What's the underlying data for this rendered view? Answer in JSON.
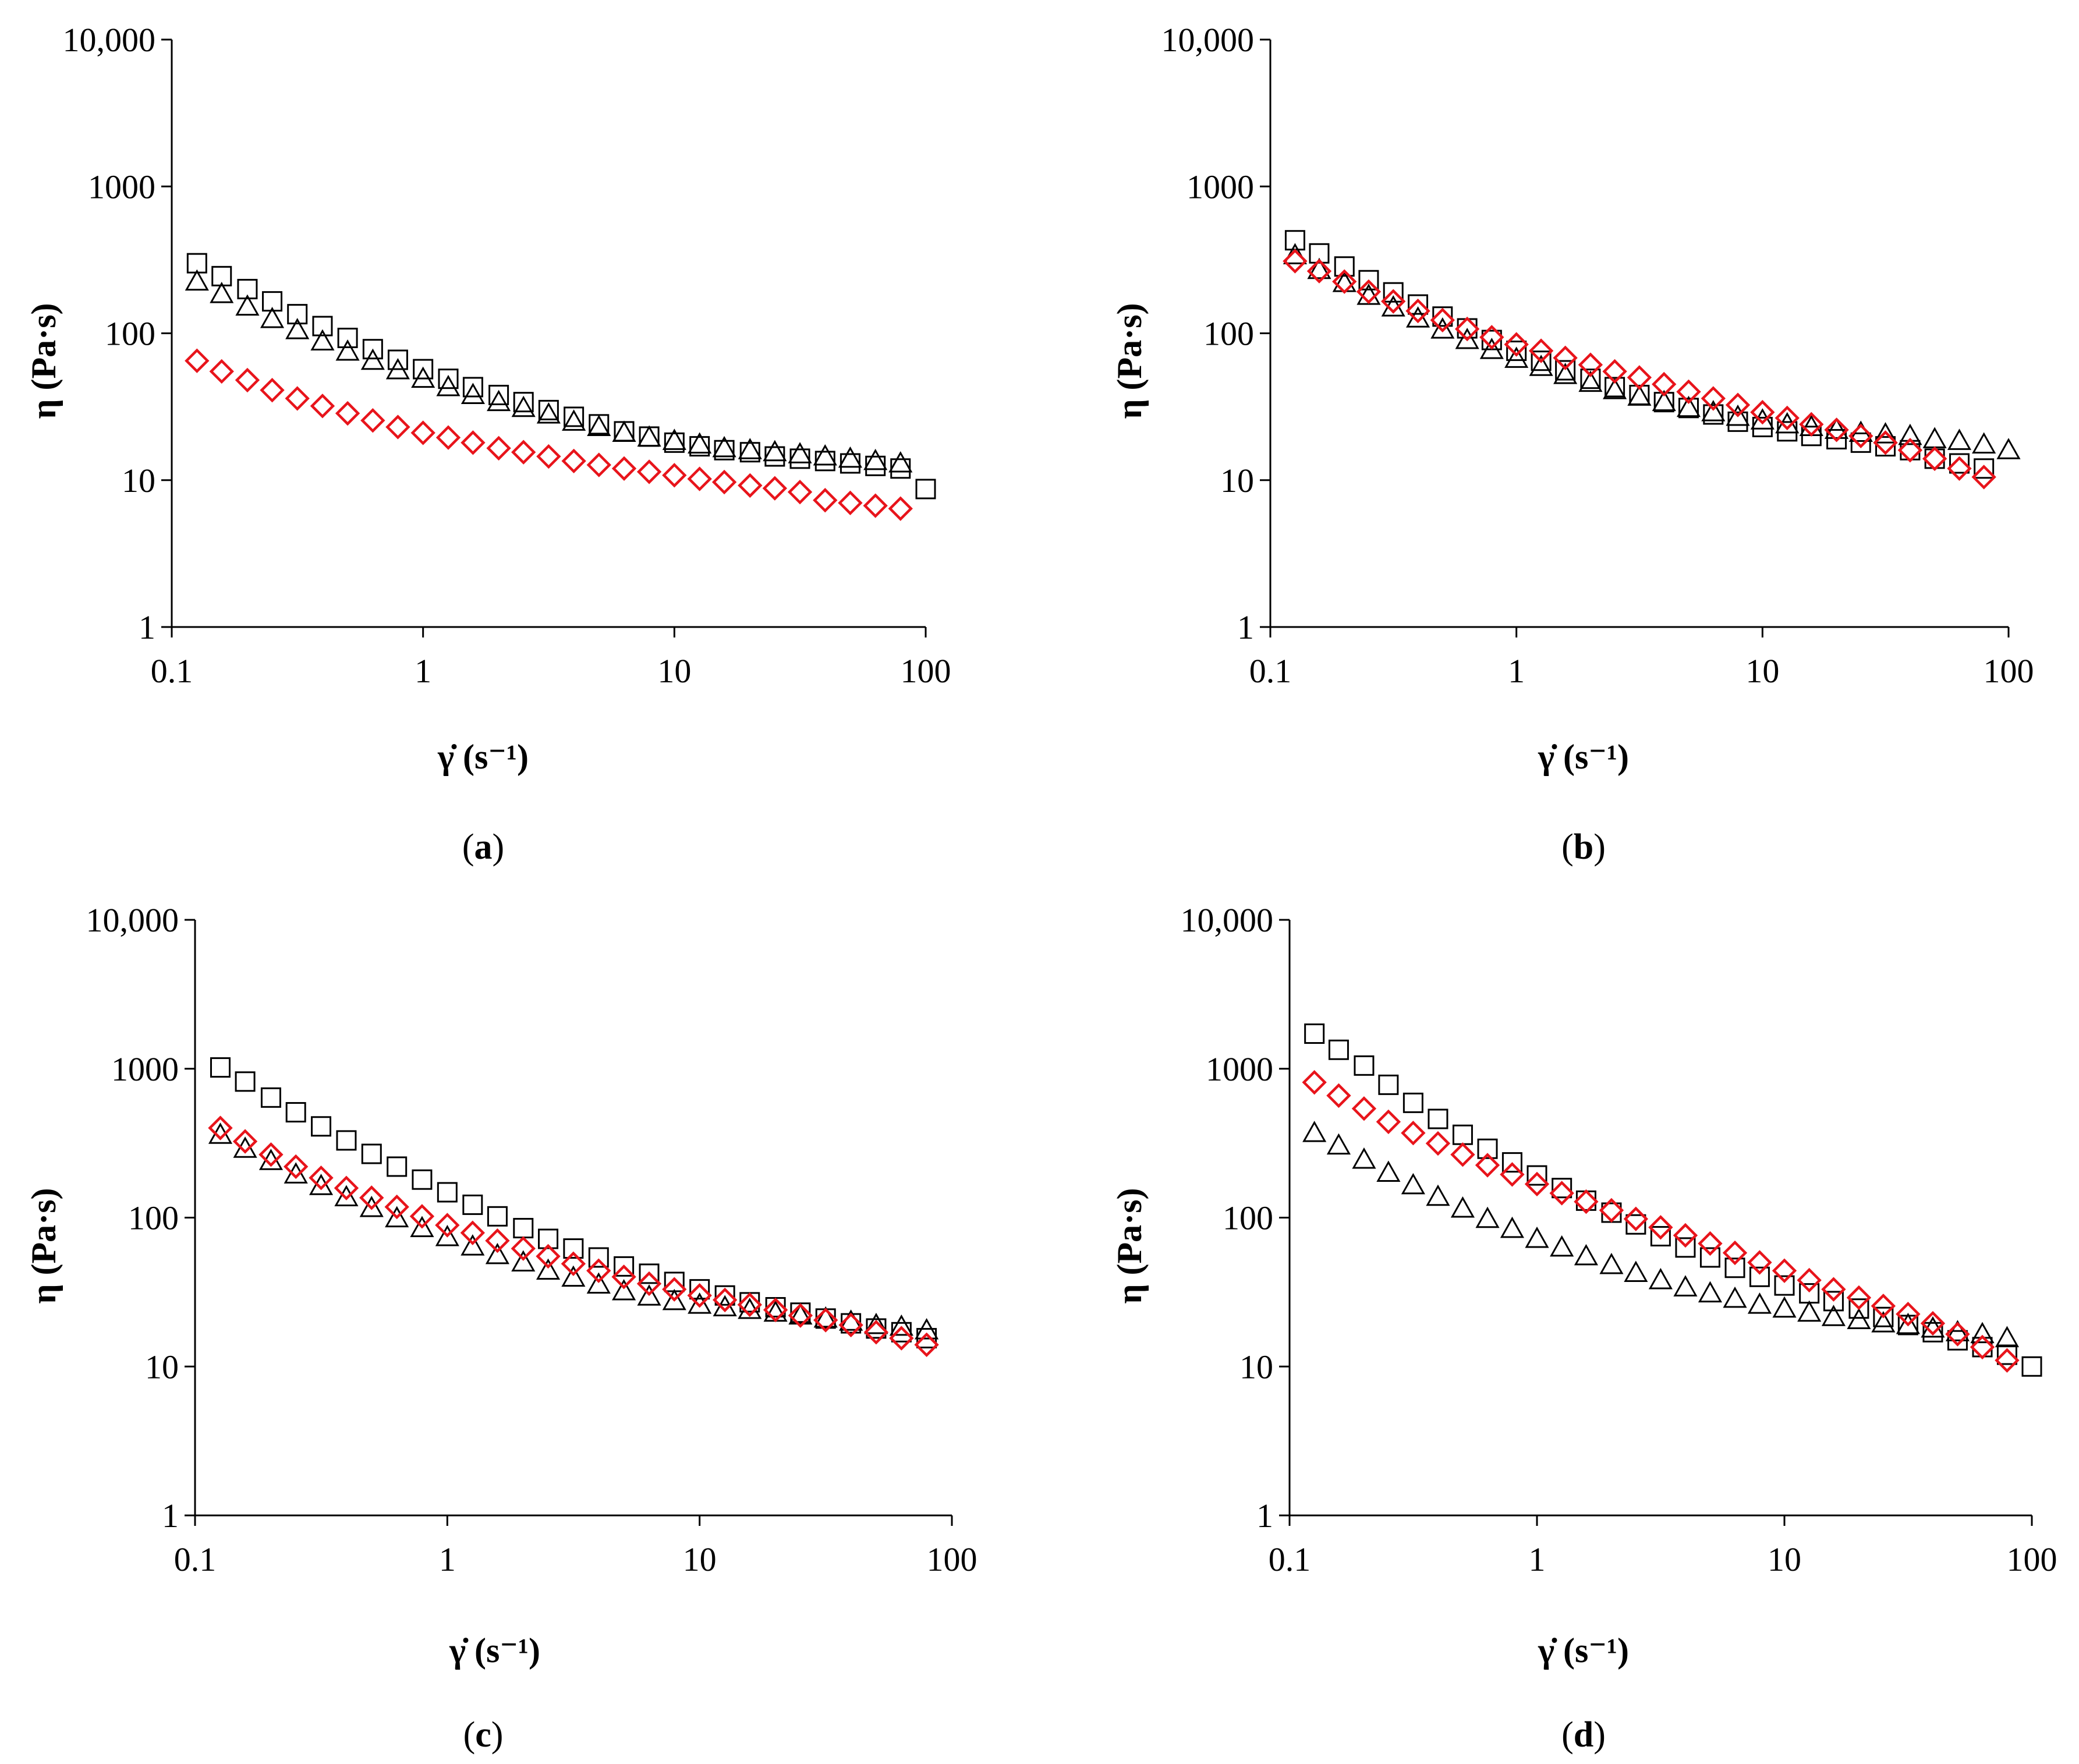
{
  "figure": {
    "panels": [
      {
        "label_open": "(",
        "label_letter": "a",
        "label_close": ")"
      },
      {
        "label_open": "(",
        "label_letter": "b",
        "label_close": ")"
      },
      {
        "label_open": "(",
        "label_letter": "c",
        "label_close": ")"
      },
      {
        "label_open": "(",
        "label_letter": "d",
        "label_close": ")"
      }
    ]
  },
  "colors": {
    "axis": "#000000",
    "black_series": "#000000",
    "red_series": "#e8141b"
  },
  "chart_data": [
    {
      "type": "scatter",
      "panel": "a",
      "xscale": "log",
      "yscale": "log",
      "xlabel": "γ̇ (s⁻¹)",
      "ylabel": "η (Pa·s)",
      "xlim": [
        0.1,
        100
      ],
      "ylim": [
        1,
        10000
      ],
      "xticks": [
        "0.1",
        "1",
        "10",
        "100"
      ],
      "yticks": [
        "1",
        "10",
        "100",
        "1000",
        "10,000"
      ],
      "series": [
        {
          "name": "square",
          "marker": "square",
          "color": "#000000",
          "x": [
            0.126,
            0.158,
            0.2,
            0.251,
            0.316,
            0.398,
            0.501,
            0.631,
            0.794,
            1,
            1.26,
            1.58,
            2,
            2.51,
            3.16,
            3.98,
            5.01,
            6.31,
            7.94,
            10,
            12.6,
            15.8,
            20,
            25.1,
            31.6,
            39.8,
            50.1,
            63.1,
            79.4,
            100
          ],
          "y": [
            300,
            245,
            200,
            165,
            135,
            112,
            93,
            78,
            66,
            57,
            49,
            43,
            38,
            34,
            30,
            27,
            24,
            21.5,
            19.8,
            18,
            17,
            16,
            15.5,
            14.5,
            14,
            13.5,
            13,
            12.5,
            12,
            8.7
          ]
        },
        {
          "name": "triangle",
          "marker": "triangle",
          "color": "#000000",
          "x": [
            0.126,
            0.158,
            0.2,
            0.251,
            0.316,
            0.398,
            0.501,
            0.631,
            0.794,
            1,
            1.26,
            1.58,
            2,
            2.51,
            3.16,
            3.98,
            5.01,
            6.31,
            7.94,
            10,
            12.6,
            15.8,
            20,
            25.1,
            31.6,
            39.8,
            50.1,
            63.1,
            79.4
          ],
          "y": [
            225,
            185,
            152,
            125,
            105,
            88,
            75,
            65,
            56,
            49,
            43,
            38,
            34,
            31,
            28,
            25,
            23,
            21,
            19.5,
            18.5,
            17.5,
            16.5,
            16,
            15.5,
            15,
            14.5,
            14,
            13.5,
            13
          ]
        },
        {
          "name": "diamond",
          "marker": "diamond",
          "color": "#e8141b",
          "x": [
            0.126,
            0.158,
            0.2,
            0.251,
            0.316,
            0.398,
            0.501,
            0.631,
            0.794,
            1,
            1.26,
            1.58,
            2,
            2.51,
            3.16,
            3.98,
            5.01,
            6.31,
            7.94,
            10,
            12.6,
            15.8,
            20,
            25.1,
            31.6,
            39.8,
            50.1,
            63.1,
            79.4
          ],
          "y": [
            65,
            55,
            48,
            41,
            36,
            32,
            28.5,
            25.5,
            23,
            21,
            19.5,
            18,
            16.5,
            15.5,
            14.5,
            13.5,
            12.7,
            12,
            11.4,
            10.8,
            10.2,
            9.7,
            9.2,
            8.8,
            8.3,
            7.3,
            7,
            6.7,
            6.4
          ]
        }
      ]
    },
    {
      "type": "scatter",
      "panel": "b",
      "xscale": "log",
      "yscale": "log",
      "xlabel": "γ̇ (s⁻¹)",
      "ylabel": "η (Pa·s)",
      "xlim": [
        0.1,
        100
      ],
      "ylim": [
        1,
        10000
      ],
      "xticks": [
        "0.1",
        "1",
        "10",
        "100"
      ],
      "yticks": [
        "1",
        "10",
        "100",
        "1000",
        "10,000"
      ],
      "series": [
        {
          "name": "square",
          "marker": "square",
          "color": "#000000",
          "x": [
            0.126,
            0.158,
            0.2,
            0.251,
            0.316,
            0.398,
            0.501,
            0.631,
            0.794,
            1,
            1.26,
            1.58,
            2,
            2.51,
            3.16,
            3.98,
            5.01,
            6.31,
            7.94,
            10,
            12.6,
            15.8,
            20,
            25.1,
            31.6,
            39.8,
            50.1,
            63.1,
            79.4
          ],
          "y": [
            430,
            350,
            285,
            230,
            190,
            157,
            130,
            108,
            90,
            76,
            65,
            56,
            49,
            43,
            38,
            34,
            31,
            28,
            25,
            23,
            21.5,
            20,
            19,
            18,
            17,
            16,
            14,
            13,
            12
          ]
        },
        {
          "name": "triangle",
          "marker": "triangle",
          "color": "#000000",
          "x": [
            0.126,
            0.158,
            0.2,
            0.251,
            0.316,
            0.398,
            0.501,
            0.631,
            0.794,
            1,
            1.26,
            1.58,
            2,
            2.51,
            3.16,
            3.98,
            5.01,
            6.31,
            7.94,
            10,
            12.6,
            15.8,
            20,
            25.1,
            31.6,
            39.8,
            50.1,
            63.1,
            79.4,
            100
          ],
          "y": [
            340,
            270,
            220,
            180,
            150,
            126,
            106,
            90,
            77,
            67,
            59,
            52,
            46,
            41,
            37,
            34,
            31,
            29,
            27,
            25.5,
            24,
            23,
            22,
            21,
            20.5,
            20,
            19,
            18.5,
            17.5,
            16
          ]
        },
        {
          "name": "diamond",
          "marker": "diamond",
          "color": "#e8141b",
          "x": [
            0.126,
            0.158,
            0.2,
            0.251,
            0.316,
            0.398,
            0.501,
            0.631,
            0.794,
            1,
            1.26,
            1.58,
            2,
            2.51,
            3.16,
            3.98,
            5.01,
            6.31,
            7.94,
            10,
            12.6,
            15.8,
            20,
            25.1,
            31.6,
            39.8,
            50.1,
            63.1,
            79.4
          ],
          "y": [
            310,
            265,
            225,
            192,
            165,
            142,
            123,
            107,
            94,
            84,
            76,
            68,
            61,
            55,
            50,
            45,
            40,
            36,
            32.5,
            29,
            26.5,
            24,
            22,
            20,
            18,
            16,
            14,
            12,
            10.5
          ]
        }
      ]
    },
    {
      "type": "scatter",
      "panel": "c",
      "xscale": "log",
      "yscale": "log",
      "xlabel": "γ̇ (s⁻¹)",
      "ylabel": "η (Pa·s)",
      "xlim": [
        0.1,
        100
      ],
      "ylim": [
        1,
        10000
      ],
      "xticks": [
        "0.1",
        "1",
        "10",
        "100"
      ],
      "yticks": [
        "1",
        "10",
        "100",
        "1000",
        "10,000"
      ],
      "series": [
        {
          "name": "square",
          "marker": "square",
          "color": "#000000",
          "x": [
            0.126,
            0.158,
            0.2,
            0.251,
            0.316,
            0.398,
            0.501,
            0.631,
            0.794,
            1,
            1.26,
            1.58,
            2,
            2.51,
            3.16,
            3.98,
            5.01,
            6.31,
            7.94,
            10,
            12.6,
            15.8,
            20,
            25.1,
            31.6,
            39.8,
            50.1,
            63.1,
            79.4
          ],
          "y": [
            1020,
            820,
            640,
            510,
            410,
            330,
            268,
            220,
            180,
            148,
            122,
            102,
            85,
            72,
            62,
            54,
            47,
            42,
            37,
            33,
            30,
            27,
            25,
            23,
            21,
            19.5,
            18,
            17,
            15.5
          ]
        },
        {
          "name": "triangle",
          "marker": "triangle",
          "color": "#000000",
          "x": [
            0.126,
            0.158,
            0.2,
            0.251,
            0.316,
            0.398,
            0.501,
            0.631,
            0.794,
            1,
            1.26,
            1.58,
            2,
            2.51,
            3.16,
            3.98,
            5.01,
            6.31,
            7.94,
            10,
            12.6,
            15.8,
            20,
            25.1,
            31.6,
            39.8,
            50.1,
            63.1,
            79.4
          ],
          "y": [
            360,
            290,
            240,
            195,
            163,
            137,
            116,
            99,
            85,
            74,
            64,
            56,
            50,
            44,
            39.5,
            35.5,
            32,
            29.5,
            27.5,
            26,
            25,
            24,
            23,
            22,
            21,
            20,
            19,
            18.5,
            17.5
          ]
        },
        {
          "name": "diamond",
          "marker": "diamond",
          "color": "#e8141b",
          "x": [
            0.126,
            0.158,
            0.2,
            0.251,
            0.316,
            0.398,
            0.501,
            0.631,
            0.794,
            1,
            1.26,
            1.58,
            2,
            2.51,
            3.16,
            3.98,
            5.01,
            6.31,
            7.94,
            10,
            12.6,
            15.8,
            20,
            25.1,
            31.6,
            39.8,
            50.1,
            63.1,
            79.4
          ],
          "y": [
            400,
            325,
            265,
            220,
            185,
            158,
            136,
            118,
            102,
            89,
            79,
            70,
            62,
            55,
            49,
            44,
            40,
            36,
            33,
            30,
            28,
            26,
            24,
            22,
            20.5,
            19,
            17,
            15.5,
            14
          ]
        }
      ]
    },
    {
      "type": "scatter",
      "panel": "d",
      "xscale": "log",
      "yscale": "log",
      "xlabel": "γ̇ (s⁻¹)",
      "ylabel": "η (Pa·s)",
      "xlim": [
        0.1,
        100
      ],
      "ylim": [
        1,
        10000
      ],
      "xticks": [
        "0.1",
        "1",
        "10",
        "100"
      ],
      "yticks": [
        "1",
        "10",
        "100",
        "1000",
        "10,000"
      ],
      "series": [
        {
          "name": "square",
          "marker": "square",
          "color": "#000000",
          "x": [
            0.126,
            0.158,
            0.2,
            0.251,
            0.316,
            0.398,
            0.501,
            0.631,
            0.794,
            1,
            1.26,
            1.58,
            2,
            2.51,
            3.16,
            3.98,
            5.01,
            6.31,
            7.94,
            10,
            12.6,
            15.8,
            20,
            25.1,
            31.6,
            39.8,
            50.1,
            63.1,
            79.4,
            100
          ],
          "y": [
            1720,
            1340,
            1050,
            780,
            590,
            460,
            360,
            290,
            235,
            192,
            158,
            130,
            108,
            90,
            75,
            63,
            54,
            46,
            40,
            35,
            31,
            27.5,
            24.5,
            21.5,
            19,
            17,
            15,
            13.5,
            12,
            10
          ]
        },
        {
          "name": "triangle",
          "marker": "triangle",
          "color": "#000000",
          "x": [
            0.126,
            0.158,
            0.2,
            0.251,
            0.316,
            0.398,
            0.501,
            0.631,
            0.794,
            1,
            1.26,
            1.58,
            2,
            2.51,
            3.16,
            3.98,
            5.01,
            6.31,
            7.94,
            10,
            12.6,
            15.8,
            20,
            25.1,
            31.6,
            39.8,
            50.1,
            63.1,
            79.4
          ],
          "y": [
            370,
            305,
            245,
            200,
            165,
            138,
            115,
            98,
            84,
            72,
            63,
            55,
            48,
            42.5,
            38,
            34,
            31,
            28.5,
            26,
            24.5,
            23,
            21.5,
            20.5,
            19.5,
            19,
            18,
            17,
            16.5,
            15.5
          ]
        },
        {
          "name": "diamond",
          "marker": "diamond",
          "color": "#e8141b",
          "x": [
            0.126,
            0.158,
            0.2,
            0.251,
            0.316,
            0.398,
            0.501,
            0.631,
            0.794,
            1,
            1.26,
            1.58,
            2,
            2.51,
            3.16,
            3.98,
            5.01,
            6.31,
            7.94,
            10,
            12.6,
            15.8,
            20,
            25.1,
            31.6,
            39.8,
            50.1,
            63.1,
            79.4
          ],
          "y": [
            810,
            660,
            540,
            440,
            370,
            315,
            265,
            225,
            195,
            168,
            146,
            128,
            112,
            98,
            86,
            76,
            67,
            58,
            50,
            44,
            38,
            33,
            29,
            25.5,
            22.5,
            19.5,
            16.5,
            13.5,
            11
          ]
        }
      ]
    }
  ]
}
